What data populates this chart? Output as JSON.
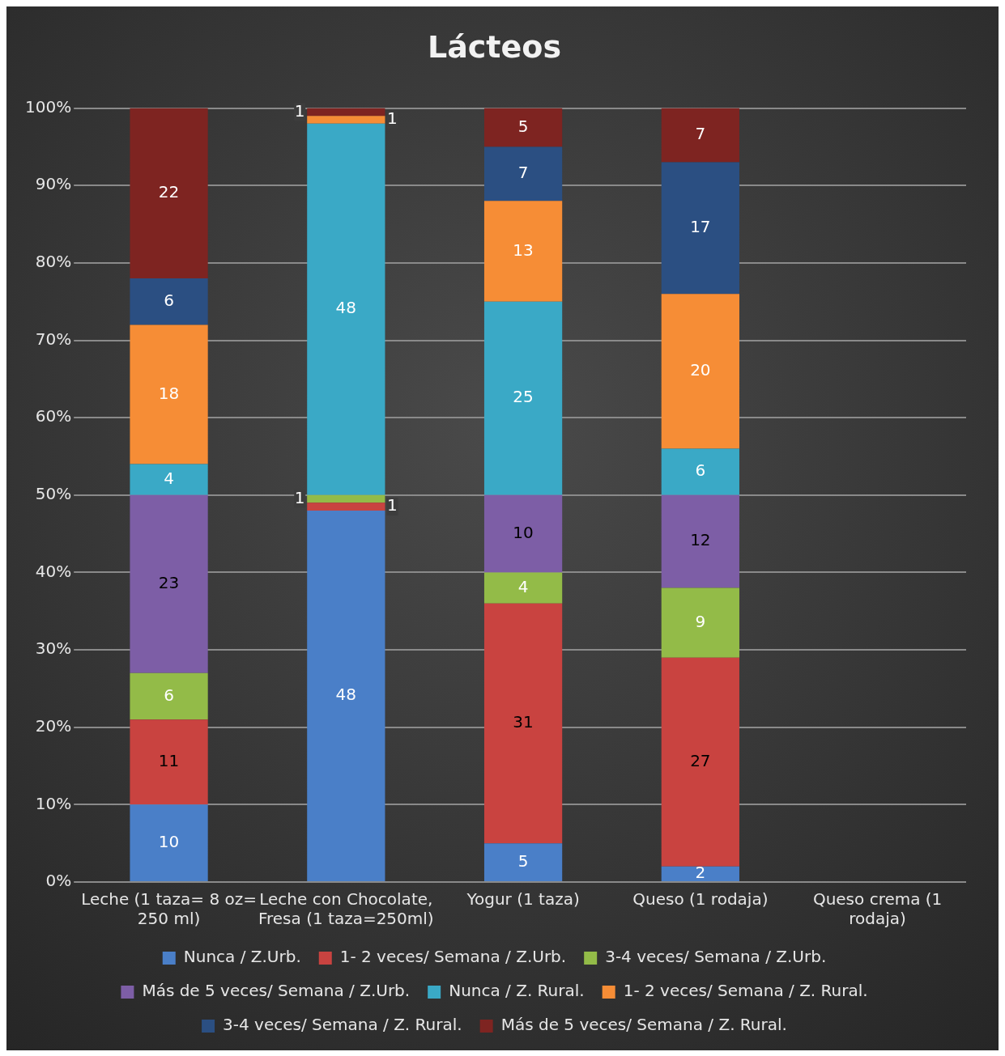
{
  "chart_data": {
    "type": "bar",
    "title": "Lácteos",
    "stacked": true,
    "data_labels": true,
    "legend": "bottom",
    "grid": "y",
    "categories": [
      "Leche (1 taza= 8 oz= 250 ml)",
      "Leche con Chocolate, Fresa (1 taza=250ml)",
      "Yogur (1 taza)",
      "Queso (1 rodaja)",
      "Queso crema (1 rodaja)"
    ],
    "ylim": [
      0,
      100
    ],
    "yticks": [
      {
        "value": 0,
        "label": "0%"
      },
      {
        "value": 10,
        "label": "10%"
      },
      {
        "value": 20,
        "label": "20%"
      },
      {
        "value": 30,
        "label": "30%"
      },
      {
        "value": 40,
        "label": "40%"
      },
      {
        "value": 50,
        "label": "50%"
      },
      {
        "value": 60,
        "label": "60%"
      },
      {
        "value": 70,
        "label": "70%"
      },
      {
        "value": 80,
        "label": "80%"
      },
      {
        "value": 90,
        "label": "90%"
      },
      {
        "value": 100,
        "label": "100%"
      }
    ],
    "series": [
      {
        "name": "Nunca / Z.Urb.",
        "color": "#4a7fc8",
        "values": [
          10,
          48,
          5,
          2,
          null
        ]
      },
      {
        "name": "1- 2 veces/ Semana / Z.Urb.",
        "color": "#c94340",
        "values": [
          11,
          1,
          31,
          27,
          null
        ]
      },
      {
        "name": "3-4 veces/ Semana / Z.Urb.",
        "color": "#93bb48",
        "values": [
          6,
          1,
          4,
          9,
          null
        ]
      },
      {
        "name": "Más de 5 veces/ Semana / Z.Urb.",
        "color": "#7d5ea6",
        "values": [
          23,
          null,
          10,
          12,
          null
        ]
      },
      {
        "name": "Nunca / Z. Rural.",
        "color": "#3aa9c6",
        "values": [
          4,
          48,
          25,
          6,
          null
        ]
      },
      {
        "name": "1- 2 veces/ Semana / Z. Rural.",
        "color": "#f68d36",
        "values": [
          18,
          1,
          13,
          20,
          null
        ]
      },
      {
        "name": "3-4 veces/ Semana / Z. Rural.",
        "color": "#2b4f82",
        "values": [
          6,
          null,
          7,
          17,
          null
        ]
      },
      {
        "name": "Más de 5 veces/ Semana / Z. Rural.",
        "color": "#7e2421",
        "values": [
          22,
          1,
          5,
          7,
          null
        ]
      }
    ]
  }
}
